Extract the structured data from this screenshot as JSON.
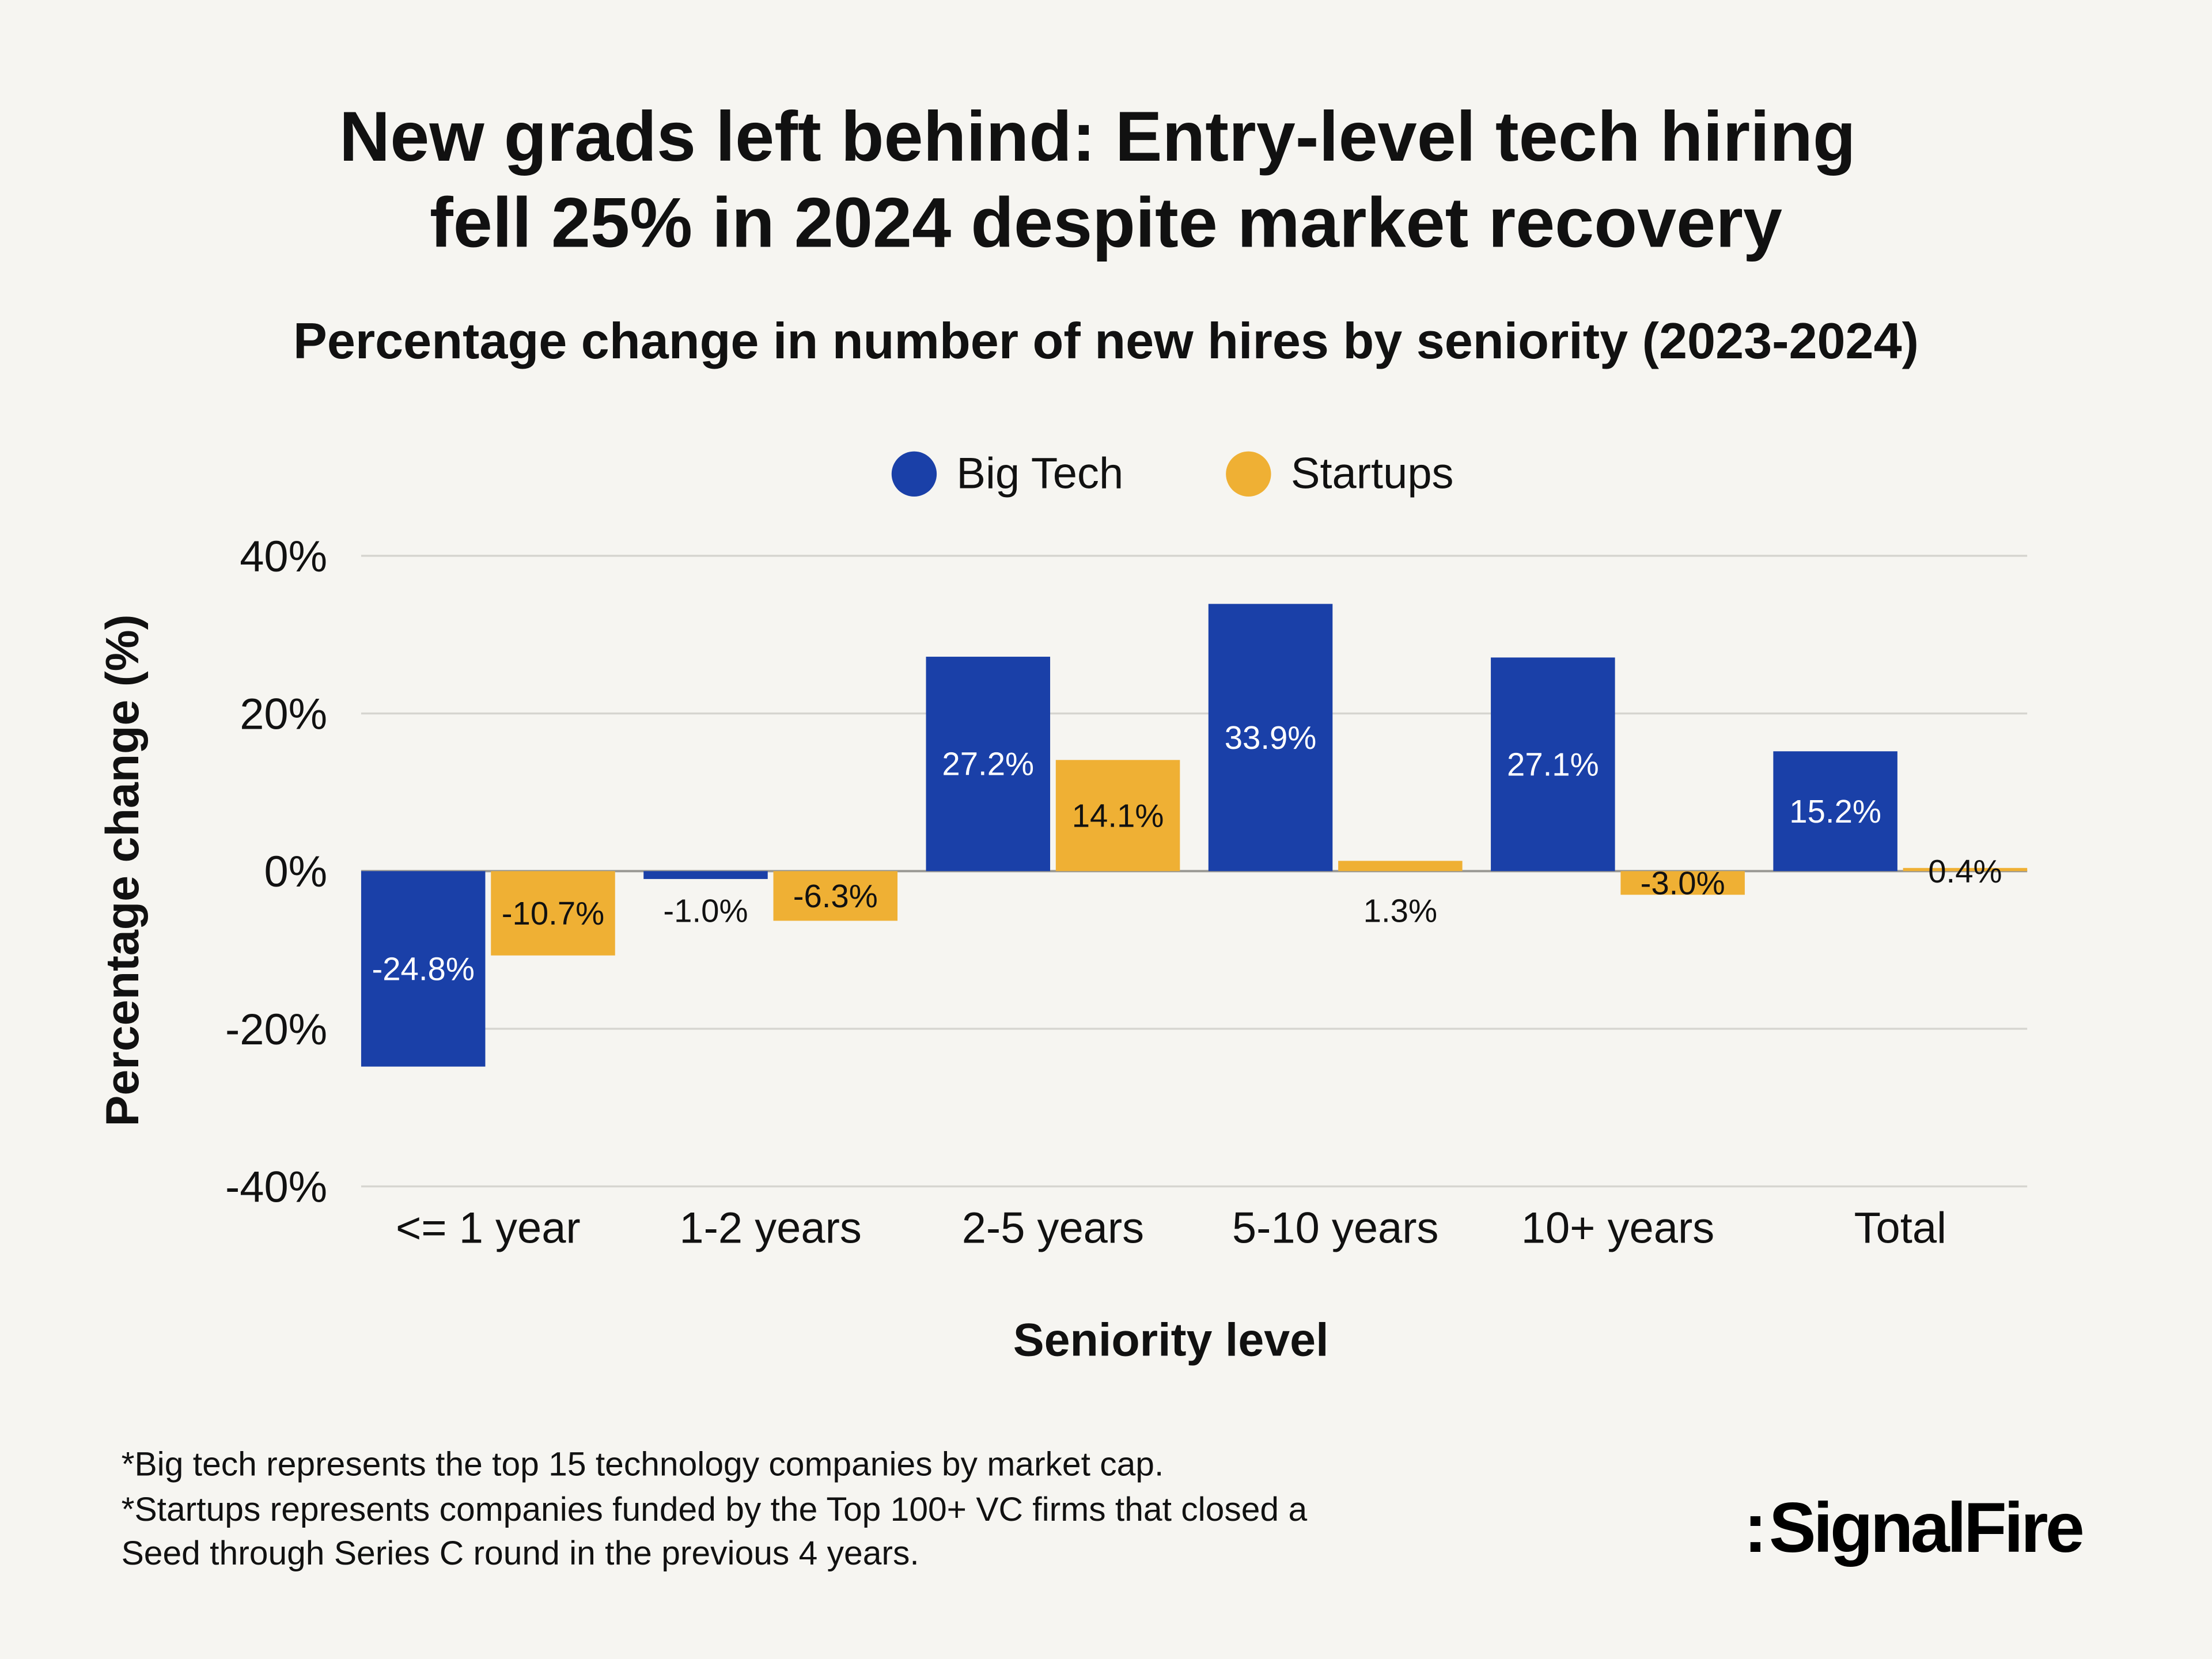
{
  "chart_data": {
    "type": "bar",
    "title_lines": [
      "New grads left behind: Entry-level tech hiring",
      "fell 25% in 2024 despite market recovery"
    ],
    "subtitle": "Percentage change in number of new hires by seniority (2023-2024)",
    "xlabel": "Seniority level",
    "ylabel": "Percentage change (%)",
    "ylim": [
      -40,
      40
    ],
    "yticks": [
      40,
      20,
      0,
      -20,
      -40
    ],
    "ytick_labels": [
      "40%",
      "20%",
      "0%",
      "-20%",
      "-40%"
    ],
    "grid": true,
    "legend_placement": "top-center",
    "categories": [
      "<= 1 year",
      "1-2 years",
      "2-5 years",
      "5-10 years",
      "10+ years",
      "Total"
    ],
    "series": [
      {
        "name": "Big Tech",
        "color": "#1a40a8",
        "values": [
          -24.8,
          -1.0,
          27.2,
          33.9,
          27.1,
          15.2
        ],
        "labels": [
          "-24.8%",
          "-1.0%",
          "27.2%",
          "33.9%",
          "27.1%",
          "15.2%"
        ]
      },
      {
        "name": "Startups",
        "color": "#efb034",
        "values": [
          -10.7,
          -6.3,
          14.1,
          1.3,
          -3.0,
          0.4
        ],
        "labels": [
          "-10.7%",
          "-6.3%",
          "14.1%",
          "1.3%",
          "-3.0%",
          "0.4%"
        ]
      }
    ]
  },
  "footnotes": [
    "*Big tech represents the top 15 technology companies by market cap.",
    "*Startups represents companies funded by the Top 100+ VC firms that closed a",
    "Seed through Series C round in the previous 4 years."
  ],
  "logo": "SignalFire",
  "colors": {
    "background": "#f6f5f1",
    "gridline": "#d6d5d0",
    "text": "#111111"
  }
}
